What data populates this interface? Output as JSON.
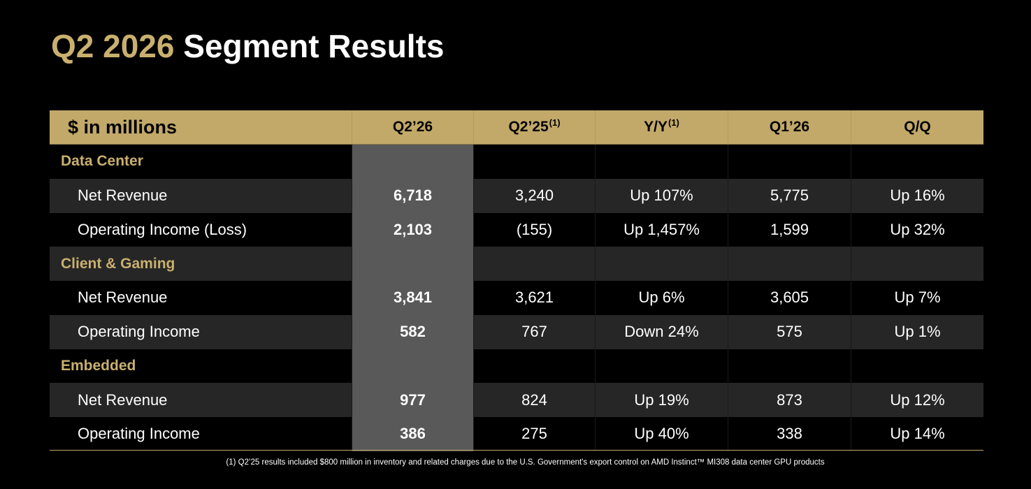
{
  "title": {
    "accent": "Q2 2026",
    "main": "Segment Results"
  },
  "colors": {
    "gold": "#C9B06E",
    "header_bg": "#C2A96A",
    "highlight_col": "#595959"
  },
  "table": {
    "headers": {
      "label": "$ in millions",
      "q2_26": "Q2’26",
      "q2_25": "Q2’25",
      "q2_25_note": "(1)",
      "yy": "Y/Y",
      "yy_note": "(1)",
      "q1_26": "Q1’26",
      "qq": "Q/Q"
    },
    "data_center": {
      "label": "Data Center",
      "net_revenue": {
        "label": "Net Revenue",
        "q2_26": "6,718",
        "q2_25": "3,240",
        "yy": "Up 107%",
        "q1_26": "5,775",
        "qq": "Up 16%"
      },
      "operating_income": {
        "label": "Operating Income (Loss)",
        "q2_26": "2,103",
        "q2_25": "(155)",
        "yy": "Up 1,457%",
        "q1_26": "1,599",
        "qq": "Up 32%"
      }
    },
    "client_gaming": {
      "label": "Client & Gaming",
      "net_revenue": {
        "label": "Net Revenue",
        "q2_26": "3,841",
        "q2_25": "3,621",
        "yy": "Up 6%",
        "q1_26": "3,605",
        "qq": "Up 7%"
      },
      "operating_income": {
        "label": "Operating Income",
        "q2_26": "582",
        "q2_25": "767",
        "yy": "Down 24%",
        "q1_26": "575",
        "qq": "Up 1%"
      }
    },
    "embedded": {
      "label": "Embedded",
      "net_revenue": {
        "label": "Net Revenue",
        "q2_26": "977",
        "q2_25": "824",
        "yy": "Up 19%",
        "q1_26": "873",
        "qq": "Up 12%"
      },
      "operating_income": {
        "label": "Operating Income",
        "q2_26": "386",
        "q2_25": "275",
        "yy": "Up 40%",
        "q1_26": "338",
        "qq": "Up 14%"
      }
    }
  },
  "footnote": "(1) Q2’25 results included $800 million in inventory and related charges due to the U.S. Government's export control on AMD Instinct™ MI308 data center GPU products"
}
